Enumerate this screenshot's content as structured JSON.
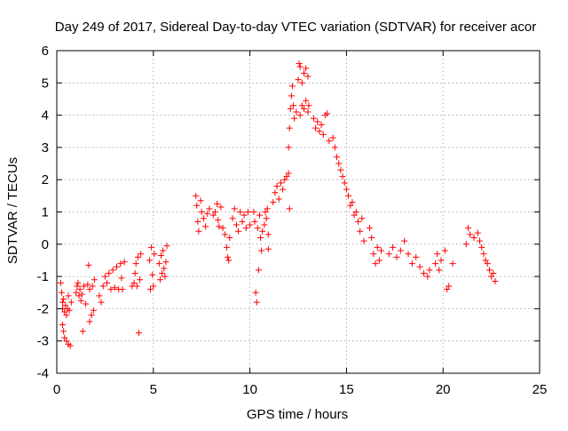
{
  "chart_data": {
    "type": "scatter",
    "title": "Day 249 of 2017, Sidereal Day-to-day VTEC variation (SDTVAR) for receiver acor",
    "xlabel": "GPS time / hours",
    "ylabel": "SDTVAR / TECUs",
    "xlim": [
      0,
      25
    ],
    "ylim": [
      -4,
      6
    ],
    "x_ticks": [
      0,
      5,
      10,
      15,
      20,
      25
    ],
    "y_ticks": [
      -4,
      -3,
      -2,
      -1,
      0,
      1,
      2,
      3,
      4,
      5,
      6
    ],
    "x_tick_labels": [
      "0",
      "5",
      "10",
      "15",
      "20",
      "25"
    ],
    "y_tick_labels": [
      "-4",
      "-3",
      "-2",
      "-1",
      "0",
      "1",
      "2",
      "3",
      "4",
      "5",
      "6"
    ],
    "grid": true,
    "marker": "+",
    "color": "#ff0000",
    "series": [
      {
        "name": "SDTVAR",
        "points": [
          [
            0.2,
            -1.2
          ],
          [
            0.25,
            -1.5
          ],
          [
            0.3,
            -1.8
          ],
          [
            0.3,
            -2.0
          ],
          [
            0.35,
            -1.7
          ],
          [
            0.4,
            -2.1
          ],
          [
            0.4,
            -2.9
          ],
          [
            0.45,
            -1.9
          ],
          [
            0.5,
            -2.2
          ],
          [
            0.5,
            -3.0
          ],
          [
            0.55,
            -2.0
          ],
          [
            0.6,
            -3.1
          ],
          [
            0.6,
            -1.6
          ],
          [
            0.65,
            -2.05
          ],
          [
            0.7,
            -3.15
          ],
          [
            0.75,
            -1.8
          ],
          [
            0.3,
            -2.5
          ],
          [
            0.35,
            -2.7
          ],
          [
            1.0,
            -1.5
          ],
          [
            1.05,
            -1.3
          ],
          [
            1.1,
            -1.2
          ],
          [
            1.15,
            -1.6
          ],
          [
            1.2,
            -1.4
          ],
          [
            1.25,
            -1.75
          ],
          [
            1.3,
            -1.55
          ],
          [
            1.35,
            -2.7
          ],
          [
            1.4,
            -1.3
          ],
          [
            1.5,
            -1.85
          ],
          [
            1.6,
            -1.25
          ],
          [
            1.7,
            -1.4
          ],
          [
            1.65,
            -0.65
          ],
          [
            1.7,
            -2.4
          ],
          [
            1.8,
            -2.2
          ],
          [
            1.9,
            -2.05
          ],
          [
            1.85,
            -1.3
          ],
          [
            1.95,
            -1.1
          ],
          [
            2.2,
            -1.6
          ],
          [
            2.3,
            -1.8
          ],
          [
            2.4,
            -1.3
          ],
          [
            2.5,
            -1.0
          ],
          [
            2.6,
            -1.2
          ],
          [
            2.7,
            -0.9
          ],
          [
            2.8,
            -1.4
          ],
          [
            2.9,
            -0.8
          ],
          [
            3.0,
            -1.35
          ],
          [
            3.1,
            -0.7
          ],
          [
            3.2,
            -1.4
          ],
          [
            3.3,
            -0.6
          ],
          [
            3.35,
            -1.05
          ],
          [
            3.4,
            -1.4
          ],
          [
            3.5,
            -0.55
          ],
          [
            3.9,
            -1.3
          ],
          [
            4.0,
            -1.2
          ],
          [
            4.05,
            -0.9
          ],
          [
            4.1,
            -0.6
          ],
          [
            4.15,
            -1.3
          ],
          [
            4.2,
            -0.4
          ],
          [
            4.3,
            -1.1
          ],
          [
            4.35,
            -0.3
          ],
          [
            4.25,
            -2.75
          ],
          [
            4.8,
            -0.5
          ],
          [
            4.85,
            -1.4
          ],
          [
            4.9,
            -0.1
          ],
          [
            4.95,
            -0.95
          ],
          [
            5.0,
            -1.3
          ],
          [
            5.05,
            -0.3
          ],
          [
            5.3,
            -0.6
          ],
          [
            5.35,
            -1.1
          ],
          [
            5.4,
            -0.35
          ],
          [
            5.45,
            -0.9
          ],
          [
            5.5,
            -0.2
          ],
          [
            5.55,
            -0.75
          ],
          [
            5.6,
            -1.0
          ],
          [
            5.65,
            -0.55
          ],
          [
            5.7,
            -0.05
          ],
          [
            7.2,
            1.5
          ],
          [
            7.25,
            1.2
          ],
          [
            7.3,
            0.7
          ],
          [
            7.35,
            0.4
          ],
          [
            7.45,
            1.35
          ],
          [
            7.5,
            1.0
          ],
          [
            7.6,
            0.8
          ],
          [
            7.7,
            0.55
          ],
          [
            7.8,
            0.95
          ],
          [
            7.9,
            1.1
          ],
          [
            8.1,
            0.9
          ],
          [
            8.2,
            1.0
          ],
          [
            8.3,
            1.25
          ],
          [
            8.35,
            0.75
          ],
          [
            8.4,
            0.55
          ],
          [
            8.5,
            1.15
          ],
          [
            8.6,
            0.5
          ],
          [
            8.7,
            0.3
          ],
          [
            8.8,
            -0.1
          ],
          [
            8.85,
            -0.4
          ],
          [
            8.9,
            -0.5
          ],
          [
            8.95,
            0.2
          ],
          [
            9.1,
            0.8
          ],
          [
            9.2,
            1.1
          ],
          [
            9.3,
            0.6
          ],
          [
            9.4,
            0.4
          ],
          [
            9.5,
            1.0
          ],
          [
            9.6,
            0.7
          ],
          [
            9.7,
            0.9
          ],
          [
            9.8,
            0.5
          ],
          [
            9.9,
            1.0
          ],
          [
            10.0,
            0.6
          ],
          [
            10.2,
            1.0
          ],
          [
            10.25,
            0.7
          ],
          [
            10.3,
            -1.5
          ],
          [
            10.35,
            -1.8
          ],
          [
            10.4,
            0.5
          ],
          [
            10.45,
            -0.8
          ],
          [
            10.5,
            0.9
          ],
          [
            10.55,
            0.2
          ],
          [
            10.6,
            -0.2
          ],
          [
            10.65,
            0.4
          ],
          [
            10.75,
            0.6
          ],
          [
            10.8,
            1.0
          ],
          [
            10.85,
            0.8
          ],
          [
            10.9,
            1.1
          ],
          [
            10.95,
            0.3
          ],
          [
            10.95,
            -0.15
          ],
          [
            11.2,
            1.3
          ],
          [
            11.3,
            1.6
          ],
          [
            11.4,
            1.8
          ],
          [
            11.5,
            1.4
          ],
          [
            11.6,
            1.9
          ],
          [
            11.7,
            1.7
          ],
          [
            11.8,
            2.0
          ],
          [
            11.9,
            2.1
          ],
          [
            12.0,
            2.2
          ],
          [
            12.05,
            1.1
          ],
          [
            12.0,
            3.0
          ],
          [
            12.05,
            3.6
          ],
          [
            12.1,
            4.2
          ],
          [
            12.15,
            4.6
          ],
          [
            12.2,
            4.9
          ],
          [
            12.25,
            4.3
          ],
          [
            12.3,
            3.9
          ],
          [
            12.4,
            4.1
          ],
          [
            12.5,
            5.1
          ],
          [
            12.55,
            5.6
          ],
          [
            12.6,
            5.5
          ],
          [
            12.7,
            5.0
          ],
          [
            12.8,
            5.3
          ],
          [
            12.9,
            5.45
          ],
          [
            13.0,
            5.2
          ],
          [
            12.6,
            4.0
          ],
          [
            12.7,
            4.3
          ],
          [
            12.8,
            4.2
          ],
          [
            12.9,
            4.45
          ],
          [
            13.0,
            4.1
          ],
          [
            13.05,
            4.3
          ],
          [
            13.3,
            3.9
          ],
          [
            13.4,
            3.6
          ],
          [
            13.5,
            3.8
          ],
          [
            13.6,
            3.5
          ],
          [
            13.7,
            3.7
          ],
          [
            13.8,
            3.4
          ],
          [
            13.9,
            4.0
          ],
          [
            14.0,
            4.05
          ],
          [
            14.1,
            3.2
          ],
          [
            14.3,
            3.3
          ],
          [
            14.4,
            3.0
          ],
          [
            14.5,
            2.7
          ],
          [
            14.6,
            2.5
          ],
          [
            14.7,
            2.3
          ],
          [
            14.8,
            2.1
          ],
          [
            14.9,
            1.9
          ],
          [
            15.0,
            1.7
          ],
          [
            15.1,
            1.5
          ],
          [
            15.2,
            1.2
          ],
          [
            15.3,
            1.3
          ],
          [
            15.4,
            0.9
          ],
          [
            15.5,
            1.0
          ],
          [
            15.6,
            0.7
          ],
          [
            15.7,
            0.4
          ],
          [
            15.8,
            0.8
          ],
          [
            15.9,
            0.1
          ],
          [
            16.2,
            0.5
          ],
          [
            16.3,
            0.2
          ],
          [
            16.4,
            -0.3
          ],
          [
            16.5,
            -0.6
          ],
          [
            16.6,
            -0.1
          ],
          [
            16.7,
            -0.5
          ],
          [
            16.8,
            -0.2
          ],
          [
            17.2,
            -0.3
          ],
          [
            17.4,
            -0.1
          ],
          [
            17.6,
            -0.4
          ],
          [
            17.8,
            -0.2
          ],
          [
            18.0,
            0.1
          ],
          [
            18.2,
            -0.3
          ],
          [
            18.4,
            -0.6
          ],
          [
            18.6,
            -0.4
          ],
          [
            18.8,
            -0.7
          ],
          [
            19.0,
            -0.9
          ],
          [
            19.2,
            -1.0
          ],
          [
            19.3,
            -0.8
          ],
          [
            19.6,
            -0.6
          ],
          [
            19.7,
            -0.3
          ],
          [
            19.8,
            -0.8
          ],
          [
            19.9,
            -0.5
          ],
          [
            20.1,
            -0.2
          ],
          [
            20.2,
            -1.4
          ],
          [
            20.3,
            -1.3
          ],
          [
            20.5,
            -0.6
          ],
          [
            21.2,
            0.0
          ],
          [
            21.3,
            0.5
          ],
          [
            21.4,
            0.3
          ],
          [
            21.6,
            0.2
          ],
          [
            21.8,
            0.35
          ],
          [
            21.9,
            0.1
          ],
          [
            22.0,
            -0.1
          ],
          [
            22.1,
            -0.3
          ],
          [
            22.2,
            -0.5
          ],
          [
            22.3,
            -0.6
          ],
          [
            22.4,
            -0.8
          ],
          [
            22.5,
            -1.0
          ],
          [
            22.6,
            -0.9
          ],
          [
            22.7,
            -1.15
          ]
        ]
      }
    ]
  }
}
